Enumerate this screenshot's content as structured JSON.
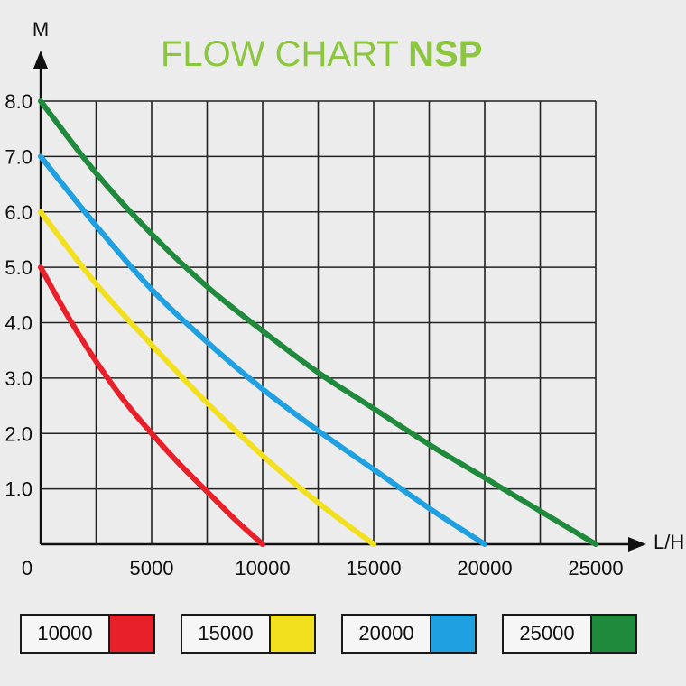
{
  "title": {
    "regular": "FLOW CHART",
    "bold": "NSP"
  },
  "chart_data": {
    "type": "line",
    "title": "FLOW CHART NSP",
    "xlabel": "L/H",
    "ylabel": "M",
    "xlim": [
      0,
      25000
    ],
    "ylim": [
      0,
      8.0
    ],
    "x_ticks": [
      "0",
      "5000",
      "10000",
      "15000",
      "20000",
      "25000"
    ],
    "y_ticks": [
      "1.0",
      "2.0",
      "3.0",
      "4.0",
      "5.0",
      "6.0",
      "7.0",
      "8.0"
    ],
    "grid": true,
    "legend_position": "bottom",
    "series": [
      {
        "name": "10000",
        "color": "#e8202a",
        "x": [
          0,
          1250,
          2500,
          3750,
          5000,
          6250,
          7500,
          8750,
          10000
        ],
        "y": [
          5.0,
          4.1,
          3.3,
          2.6,
          2.0,
          1.45,
          0.95,
          0.45,
          0.0
        ]
      },
      {
        "name": "15000",
        "color": "#f2e01e",
        "x": [
          0,
          2500,
          5000,
          7500,
          10000,
          12500,
          15000
        ],
        "y": [
          6.0,
          4.7,
          3.6,
          2.55,
          1.6,
          0.75,
          0.0
        ]
      },
      {
        "name": "20000",
        "color": "#1fa0e0",
        "x": [
          0,
          2500,
          5000,
          7500,
          10000,
          12500,
          15000,
          17500,
          20000
        ],
        "y": [
          7.0,
          5.75,
          4.6,
          3.65,
          2.8,
          2.05,
          1.35,
          0.65,
          0.0
        ]
      },
      {
        "name": "25000",
        "color": "#1f8a3c",
        "x": [
          0,
          2500,
          5000,
          7500,
          10000,
          12500,
          15000,
          17500,
          20000,
          22500,
          25000
        ],
        "y": [
          8.0,
          6.7,
          5.6,
          4.65,
          3.85,
          3.1,
          2.45,
          1.8,
          1.2,
          0.6,
          0.0
        ]
      }
    ]
  }
}
